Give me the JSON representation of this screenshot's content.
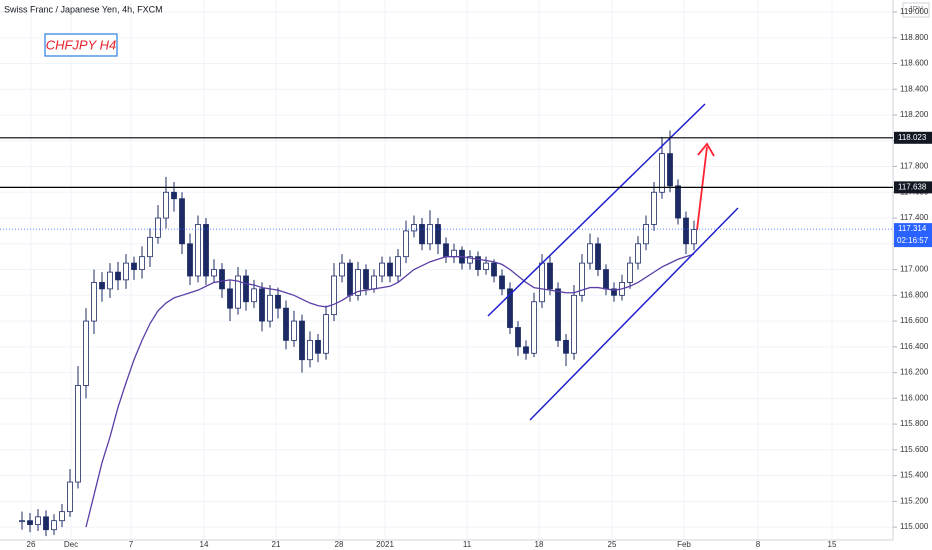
{
  "chart_data": {
    "type": "candlestick",
    "title": "Swiss Franc / Japanese Yen, 4h, FXCM",
    "annotation": "CHFJPY H4",
    "currency": "JPY",
    "xticks": [
      "26",
      "Dec",
      "7",
      "14",
      "21",
      "28",
      "2021",
      "11",
      "18",
      "25",
      "Feb",
      "8",
      "15"
    ],
    "closes": [
      115.05,
      115.02,
      115.08,
      114.98,
      115.05,
      115.12,
      115.35,
      116.1,
      116.6,
      116.9,
      116.85,
      116.98,
      116.92,
      117.05,
      117.0,
      117.1,
      117.25,
      117.4,
      117.6,
      117.55,
      117.2,
      116.95,
      117.35,
      116.95,
      117.0,
      116.85,
      116.7,
      116.95,
      116.75,
      116.85,
      116.6,
      116.8,
      116.7,
      116.45,
      116.6,
      116.3,
      116.45,
      116.35,
      116.65,
      116.95,
      117.05,
      116.8,
      117.0,
      116.85,
      116.95,
      117.05,
      116.95,
      117.1,
      117.3,
      117.35,
      117.2,
      117.35,
      117.2,
      117.1,
      117.15,
      117.05,
      117.1,
      117.0,
      117.05,
      116.95,
      116.85,
      116.55,
      116.4,
      116.35,
      116.75,
      117.05,
      116.85,
      116.45,
      116.35,
      116.8,
      117.05,
      117.2,
      117.0,
      116.85,
      116.8,
      116.9,
      117.05,
      117.2,
      117.35,
      117.6,
      117.9,
      117.65,
      117.4,
      117.2,
      117.31
    ],
    "highs": [
      115.12,
      115.11,
      115.14,
      115.13,
      115.1,
      115.18,
      115.45,
      116.25,
      116.7,
      117.0,
      116.98,
      117.05,
      117.06,
      117.12,
      117.1,
      117.18,
      117.32,
      117.5,
      117.72,
      117.68,
      117.6,
      117.28,
      117.42,
      117.4,
      117.08,
      117.05,
      116.92,
      117.02,
      117.0,
      116.92,
      116.9,
      116.88,
      116.86,
      116.76,
      116.68,
      116.65,
      116.52,
      116.5,
      116.72,
      117.05,
      117.12,
      117.08,
      117.06,
      117.04,
      117.0,
      117.1,
      117.1,
      117.16,
      117.38,
      117.42,
      117.4,
      117.46,
      117.4,
      117.25,
      117.2,
      117.18,
      117.15,
      117.14,
      117.1,
      117.08,
      117.0,
      116.9,
      116.6,
      116.45,
      116.82,
      117.12,
      117.1,
      116.9,
      116.5,
      116.88,
      117.12,
      117.28,
      117.25,
      117.04,
      116.9,
      116.96,
      117.1,
      117.26,
      117.42,
      117.68,
      118.03,
      118.08,
      117.7,
      117.45,
      117.38
    ],
    "lows": [
      114.98,
      114.96,
      114.97,
      114.93,
      114.94,
      115.0,
      115.08,
      115.3,
      116.0,
      116.5,
      116.75,
      116.78,
      116.84,
      116.85,
      116.92,
      116.93,
      117.02,
      117.2,
      117.32,
      117.45,
      117.12,
      116.88,
      116.9,
      116.88,
      116.9,
      116.78,
      116.6,
      116.65,
      116.68,
      116.7,
      116.52,
      116.55,
      116.62,
      116.38,
      116.4,
      116.2,
      116.24,
      116.28,
      116.3,
      116.6,
      116.9,
      116.75,
      116.76,
      116.8,
      116.82,
      116.9,
      116.9,
      116.9,
      117.05,
      117.25,
      117.15,
      117.15,
      117.12,
      117.05,
      117.05,
      117.0,
      117.0,
      116.95,
      116.96,
      116.9,
      116.8,
      116.5,
      116.33,
      116.3,
      116.32,
      116.7,
      116.8,
      116.4,
      116.25,
      116.3,
      116.75,
      117.0,
      116.95,
      116.8,
      116.75,
      116.76,
      116.85,
      117.0,
      117.15,
      117.3,
      117.55,
      117.6,
      117.35,
      117.12,
      117.15
    ],
    "up_color": "#ffffff",
    "down_color": "#1c2b63",
    "ma": {
      "color": "#5a3ea6",
      "values": [
        null,
        null,
        null,
        null,
        null,
        null,
        null,
        null,
        115.0,
        115.25,
        115.5,
        115.7,
        115.93,
        116.12,
        116.3,
        116.45,
        116.58,
        116.68,
        116.74,
        116.78,
        116.8,
        116.82,
        116.84,
        116.87,
        116.9,
        116.91,
        116.92,
        116.91,
        116.89,
        116.88,
        116.86,
        116.85,
        116.84,
        116.82,
        116.8,
        116.77,
        116.74,
        116.72,
        116.71,
        116.73,
        116.76,
        116.8,
        116.83,
        116.84,
        116.85,
        116.86,
        116.87,
        116.9,
        116.95,
        117.0,
        117.03,
        117.06,
        117.08,
        117.1,
        117.1,
        117.1,
        117.09,
        117.08,
        117.07,
        117.06,
        117.04,
        117.0,
        116.95,
        116.9,
        116.86,
        116.85,
        116.84,
        116.83,
        116.82,
        116.82,
        116.84,
        116.86,
        116.86,
        116.85,
        116.84,
        116.85,
        116.87,
        116.9,
        116.94,
        116.98,
        117.02,
        117.05,
        117.08,
        117.1,
        117.12
      ]
    },
    "hlines": [
      118.023,
      117.638
    ],
    "last_price": 117.314,
    "countdown": "02:16:57",
    "ylim": [
      114.9,
      119.093
    ],
    "yticks": [
      {
        "value": 115,
        "label": "115.000"
      },
      {
        "value": 115.2,
        "label": "115.200"
      },
      {
        "value": 115.4,
        "label": "115.400"
      },
      {
        "value": 115.6,
        "label": "115.600"
      },
      {
        "value": 115.8,
        "label": "115.800"
      },
      {
        "value": 116,
        "label": "116.000"
      },
      {
        "value": 116.2,
        "label": "116.200"
      },
      {
        "value": 116.4,
        "label": "116.400"
      },
      {
        "value": 116.6,
        "label": "116.600"
      },
      {
        "value": 116.8,
        "label": "116.800"
      },
      {
        "value": 117,
        "label": "117.000"
      },
      {
        "value": 117.2,
        "label": "117.200"
      },
      {
        "value": 117.4,
        "label": "117.400"
      },
      {
        "value": 117.6,
        "label": "117.600"
      },
      {
        "value": 117.8,
        "label": "117.800"
      },
      {
        "value": 118,
        "label": "118.000"
      },
      {
        "value": 118.2,
        "label": "118.200"
      },
      {
        "value": 118.4,
        "label": "118.400"
      },
      {
        "value": 118.6,
        "label": "118.600"
      },
      {
        "value": 118.8,
        "label": "118.800"
      },
      {
        "value": 119,
        "label": "119.000"
      }
    ]
  }
}
